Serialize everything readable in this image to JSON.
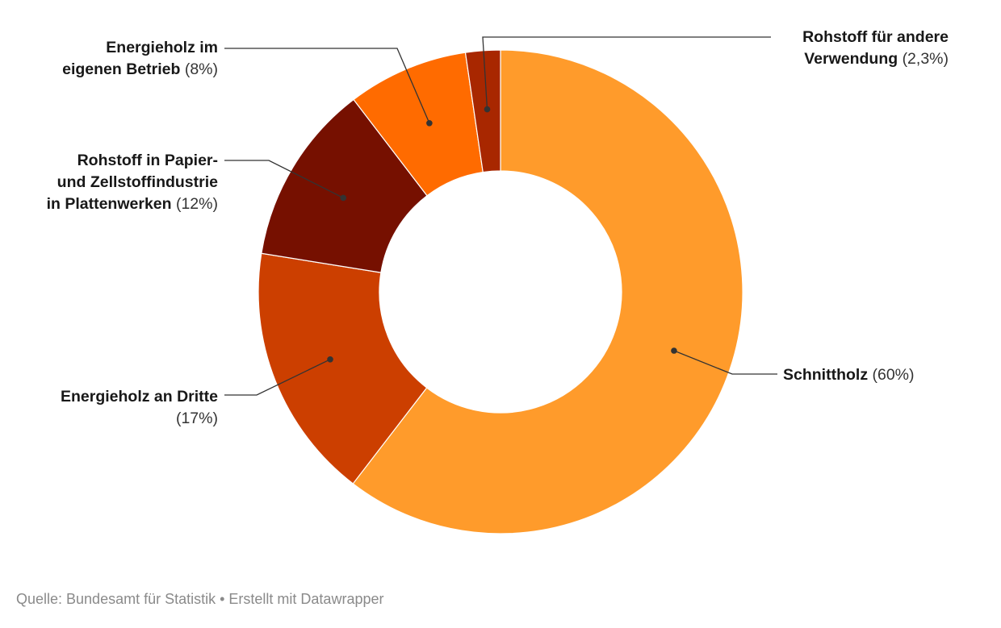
{
  "chart_data": {
    "type": "pie",
    "variant": "donut",
    "slices": [
      {
        "id": "schnittholz",
        "name": "Schnittholz",
        "value": 60,
        "pct_label": "(60%)",
        "color": "#ff9b2b"
      },
      {
        "id": "energie-dritte",
        "name": "Energieholz an Dritte",
        "value": 17,
        "pct_label": "(17%)",
        "color": "#cc3f00"
      },
      {
        "id": "papier",
        "name": "Rohstoff in Papier- und Zellstoffindustrie in Plattenwerken",
        "value": 12,
        "pct_label": "(12%)",
        "color": "#761000"
      },
      {
        "id": "energie-betrieb",
        "name": "Energieholz im eigenen Betrieb",
        "value": 8,
        "pct_label": "(8%)",
        "color": "#ff6b00"
      },
      {
        "id": "rohstoff-andere",
        "name": "Rohstoff für andere Verwendung",
        "value": 2.3,
        "pct_label": "(2,3%)",
        "color": "#a82700"
      }
    ]
  },
  "labels": {
    "schnittholz": {
      "name": "Schnittholz",
      "pct": "(60%)"
    },
    "energie_dritte": {
      "name": "Energieholz an Dritte",
      "pct": "(17%)"
    },
    "papier": {
      "line1": "Rohstoff in Papier-",
      "line2": "und Zellstoffindustrie",
      "line3": "in Plattenwerken",
      "pct": "(12%)"
    },
    "energie_betrieb": {
      "line1": "Energieholz im",
      "line2": "eigenen Betrieb",
      "pct": "(8%)"
    },
    "rohstoff_andere": {
      "line1": "Rohstoff für andere",
      "line2": "Verwendung",
      "pct": "(2,3%)"
    }
  },
  "footer": {
    "text": "Quelle: Bundesamt für Statistik • Erstellt mit Datawrapper"
  }
}
